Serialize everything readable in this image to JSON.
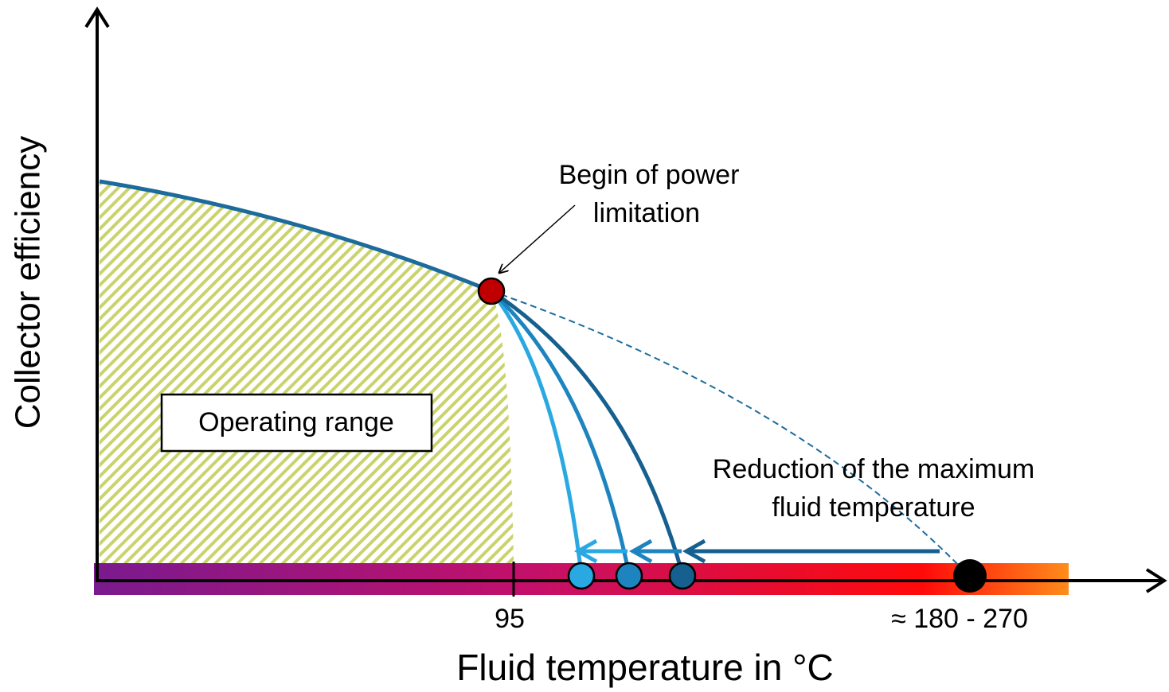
{
  "axes": {
    "x_label": "Fluid temperature in °C",
    "y_label": "Collector efficiency"
  },
  "ticks": [
    "95",
    "≈ 180 - 270"
  ],
  "annotations": {
    "power_limitation": [
      "Begin of power",
      "limitation"
    ],
    "operating_range": "Operating range",
    "reduction": [
      "Reduction of the maximum",
      "fluid temperature"
    ]
  }
}
